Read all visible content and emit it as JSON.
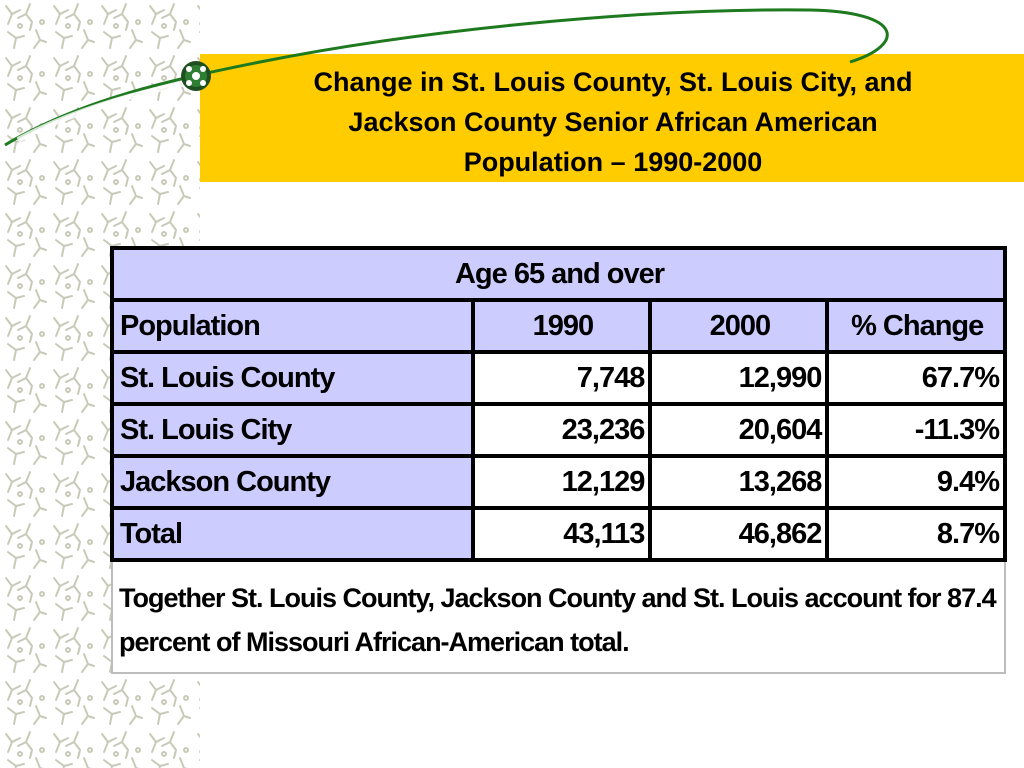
{
  "slide": {
    "title_lines": [
      "Change in St. Louis County, St. Louis City, and",
      "Jackson County Senior African American",
      "Population – 1990-2000"
    ]
  },
  "colors": {
    "title_band": "#FFCC00",
    "table_header_fill": "#CCCCFF",
    "swoosh": "#1E7A1E"
  },
  "icons": {
    "bullet": "green-globe-bullet-icon",
    "background_pattern": "figure-pattern"
  },
  "table": {
    "caption": "Age 65 and over",
    "columns": [
      "Population",
      "1990",
      "2000",
      "% Change"
    ],
    "rows": [
      {
        "label": "St. Louis County",
        "v1990": "7,748",
        "v2000": "12,990",
        "change": "67.7%"
      },
      {
        "label": "St. Louis City",
        "v1990": "23,236",
        "v2000": "20,604",
        "change": "-11.3%"
      },
      {
        "label": "Jackson County",
        "v1990": "12,129",
        "v2000": "13,268",
        "change": "9.4%"
      },
      {
        "label": "Total",
        "v1990": "43,113",
        "v2000": "46,862",
        "change": "8.7%"
      }
    ],
    "note": "Together St. Louis County, Jackson County and St. Louis account for 87.4 percent of Missouri African-American total."
  }
}
